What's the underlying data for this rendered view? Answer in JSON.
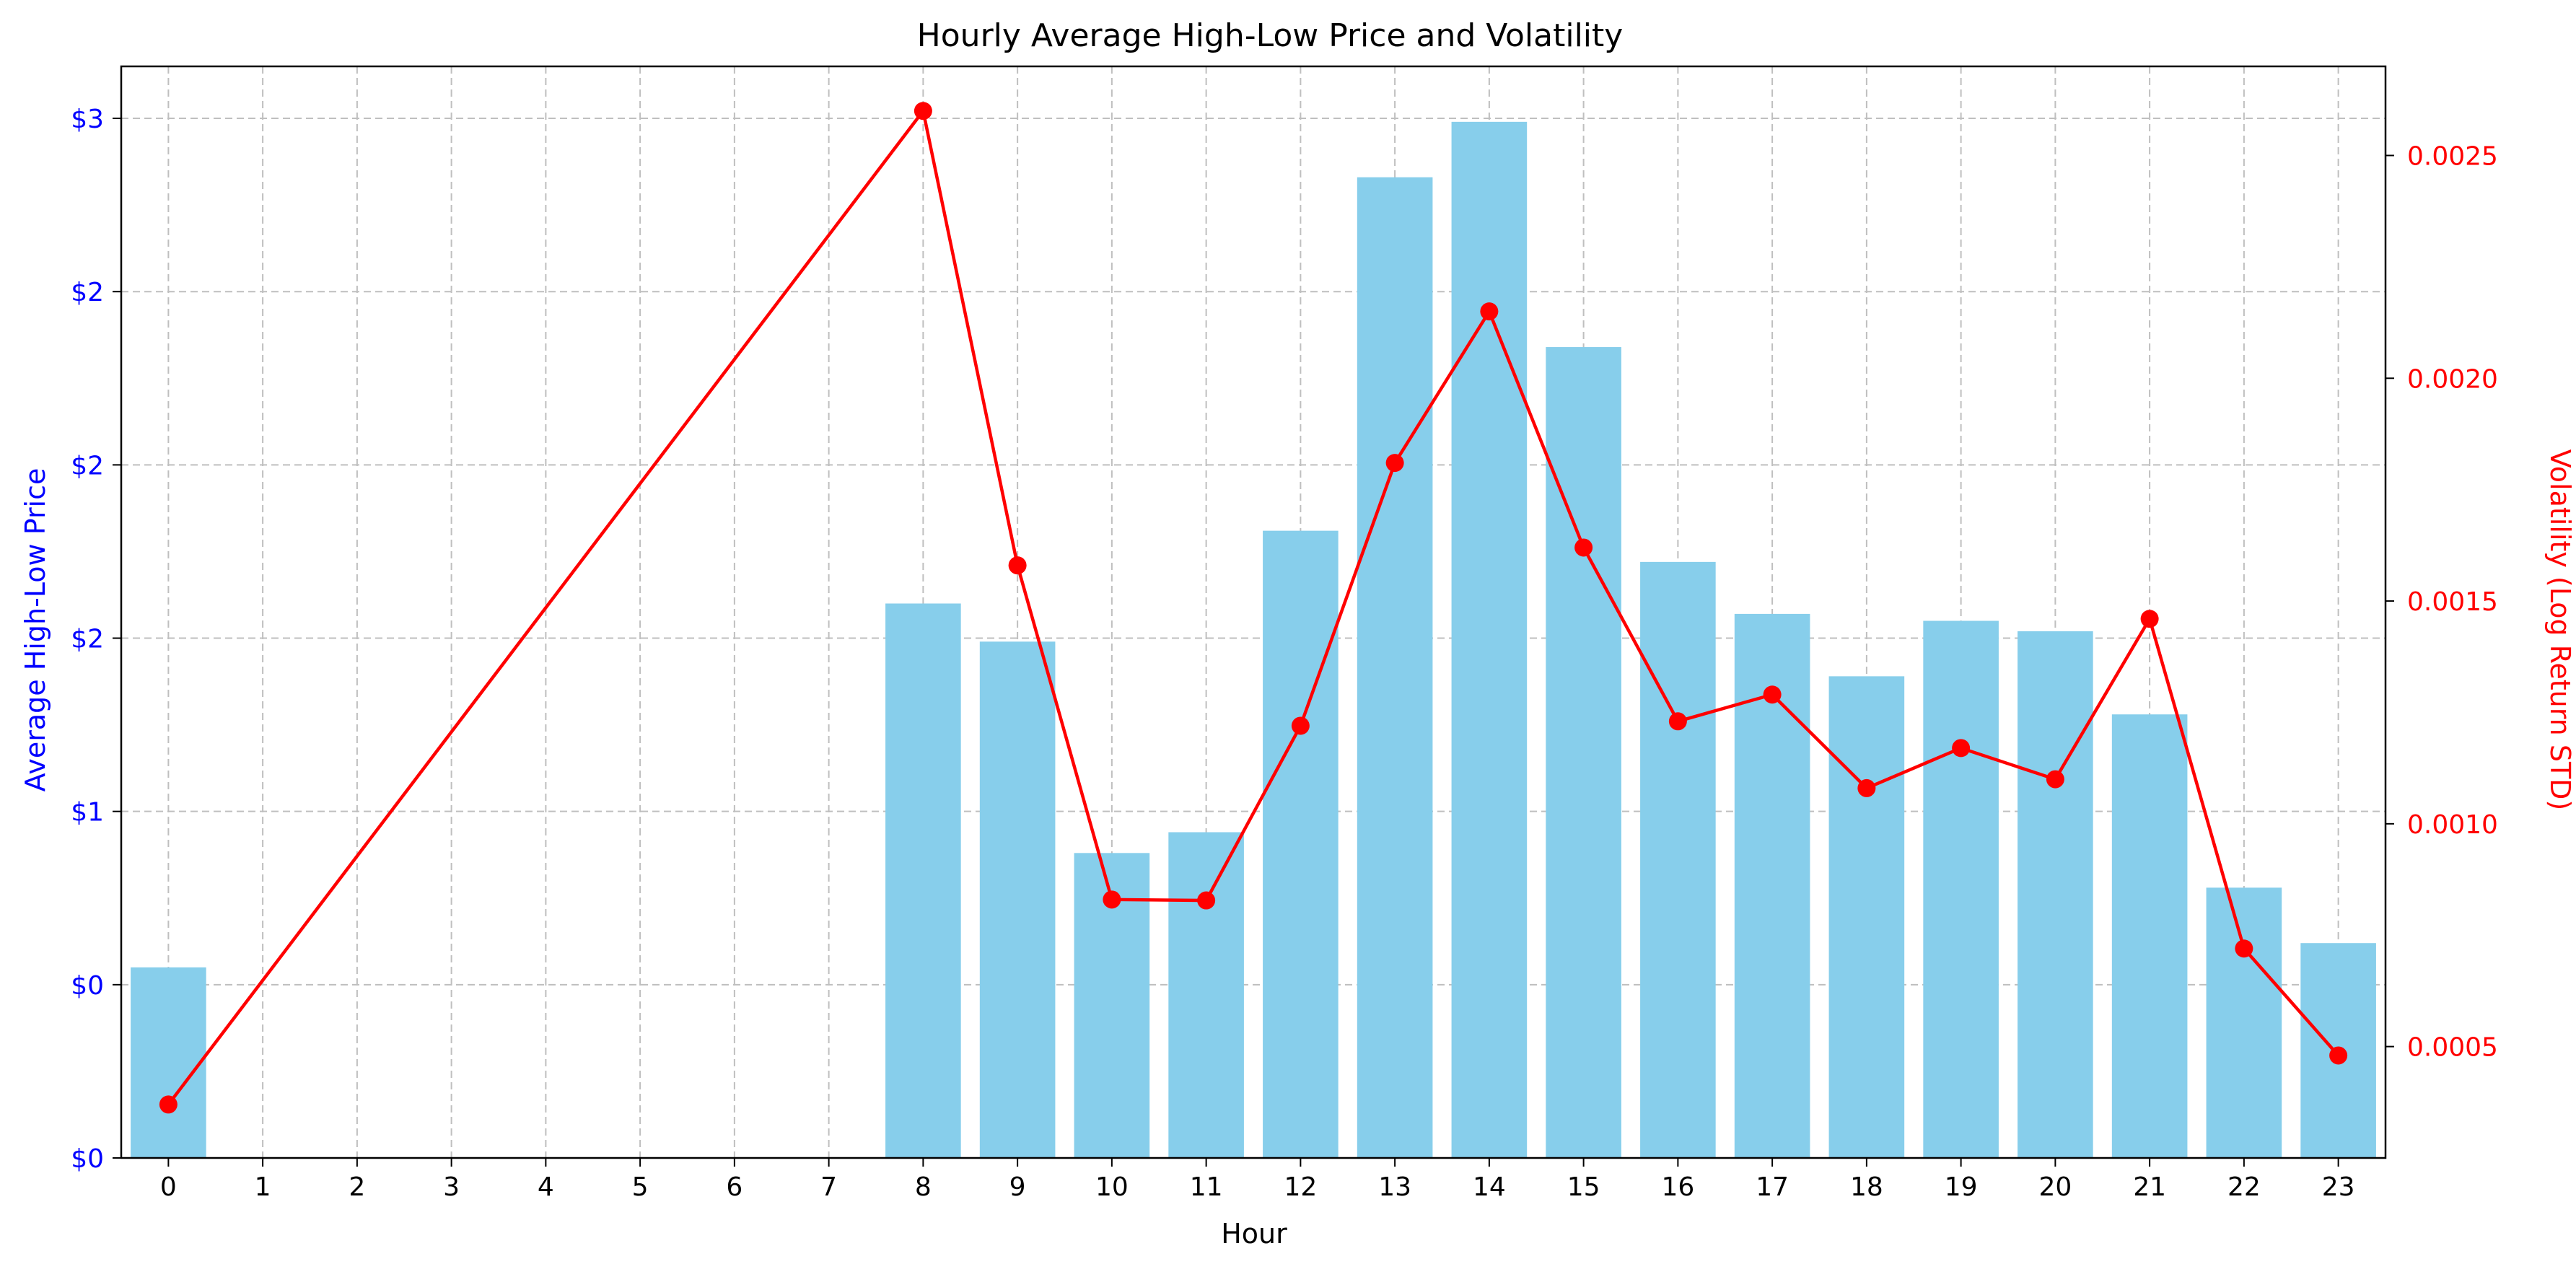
{
  "chart_data": {
    "type": "bar",
    "title": "Hourly Average High-Low Price and Volatility",
    "xlabel": "Hour",
    "ylabel": "Average High-Low Price",
    "y2label": "Volatility (Log Return STD)",
    "categories": [
      "0",
      "1",
      "2",
      "3",
      "4",
      "5",
      "6",
      "7",
      "8",
      "9",
      "10",
      "11",
      "12",
      "13",
      "14",
      "15",
      "16",
      "17",
      "18",
      "19",
      "20",
      "21",
      "22",
      "23"
    ],
    "series": [
      {
        "type": "bar",
        "axis": "left",
        "color": "#87CEEB",
        "values": [
          0.55,
          null,
          null,
          null,
          null,
          null,
          null,
          null,
          1.6,
          1.49,
          0.88,
          0.94,
          1.81,
          2.83,
          2.99,
          2.34,
          1.72,
          1.57,
          1.39,
          1.55,
          1.52,
          1.28,
          0.78,
          0.62
        ]
      },
      {
        "type": "line",
        "axis": "right",
        "color": "#FF0000",
        "values": [
          0.00037,
          null,
          null,
          null,
          null,
          null,
          null,
          null,
          0.0026,
          0.00158,
          0.00083,
          0.000828,
          0.00122,
          0.00181,
          0.00215,
          0.00162,
          0.00123,
          0.00129,
          0.00108,
          0.00117,
          0.0011,
          0.00146,
          0.00072,
          0.00048
        ]
      }
    ],
    "y_ticks": [
      "$0",
      "$0",
      "$1",
      "$2",
      "$2",
      "$2",
      "$3"
    ],
    "y2_ticks": [
      "0.0005",
      "0.0010",
      "0.0015",
      "0.0020",
      "0.0025"
    ],
    "ylim": [
      0,
      3.15
    ],
    "y2lim": [
      0.00025,
      0.0027
    ],
    "y_tick_values": [
      0,
      0.5,
      1.0,
      1.5,
      2.0,
      2.5,
      3.0
    ],
    "y2_tick_values": [
      0.0005,
      0.001,
      0.0015,
      0.002,
      0.0025
    ],
    "grid": true,
    "colors": {
      "left_axis": "#0000FF",
      "right_axis": "#FF0000",
      "grid": "#BFBFBF"
    }
  }
}
